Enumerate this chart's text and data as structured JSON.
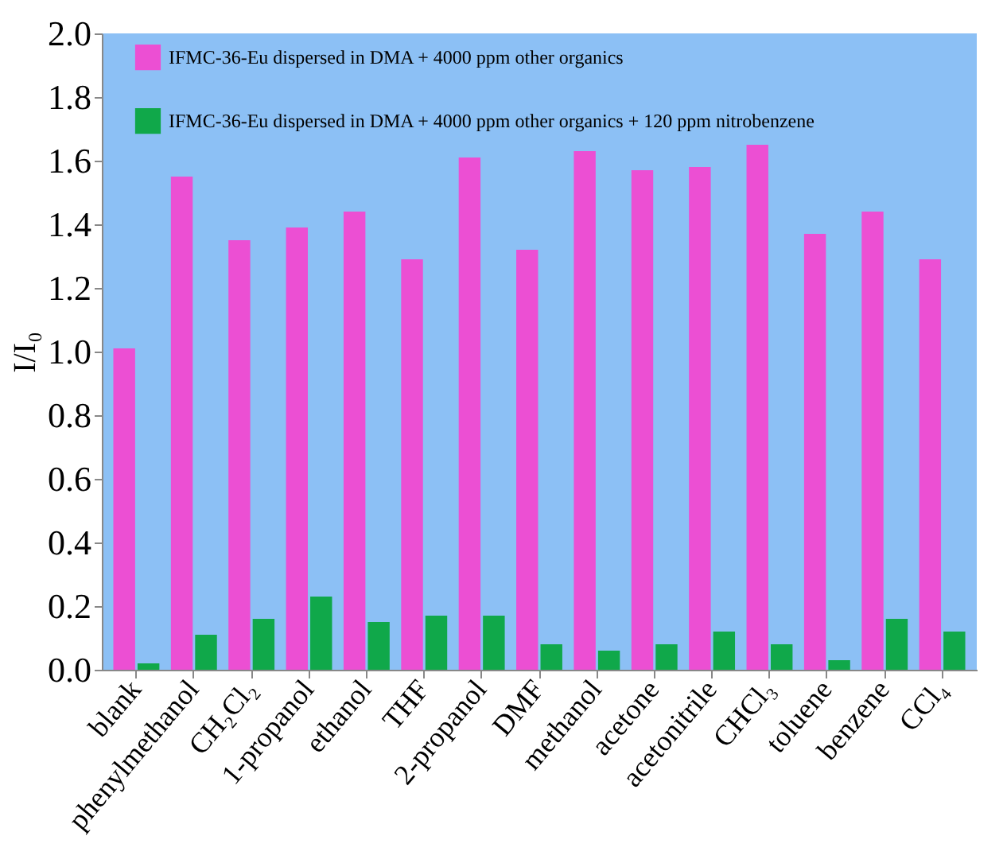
{
  "chart_data": {
    "type": "bar",
    "ylabel": "I/I₀",
    "categories": [
      "blank",
      "phenylmethanol",
      "CH₂Cl₂",
      "1-propanol",
      "ethanol",
      "THF",
      "2-propanol",
      "DMF",
      "methanol",
      "acetone",
      "acetonitrile",
      "CHCl₃",
      "toluene",
      "benzene",
      "CCl₄"
    ],
    "series": [
      {
        "name": "IFMC-36-Eu dispersed in DMA + 4000 ppm other organics",
        "color": "#ec4fd3",
        "values": [
          1.01,
          1.55,
          1.35,
          1.39,
          1.44,
          1.29,
          1.61,
          1.32,
          1.63,
          1.57,
          1.58,
          1.65,
          1.37,
          1.44,
          1.29
        ]
      },
      {
        "name": "IFMC-36-Eu dispersed in DMA + 4000 ppm other organics + 120 ppm nitrobenzene",
        "color": "#10a84a",
        "values": [
          0.02,
          0.11,
          0.16,
          0.23,
          0.15,
          0.17,
          0.17,
          0.08,
          0.06,
          0.08,
          0.12,
          0.08,
          0.03,
          0.16,
          0.12
        ]
      }
    ],
    "ylim": [
      0,
      2.0
    ],
    "yticks": [
      {
        "value": 0,
        "label": "0.0"
      },
      {
        "value": 0.2,
        "label": "0.2"
      },
      {
        "value": 0.4,
        "label": "0.4"
      },
      {
        "value": 0.6,
        "label": "0.6"
      },
      {
        "value": 0.8,
        "label": "0.8"
      },
      {
        "value": 1.0,
        "label": "1.0"
      },
      {
        "value": 1.2,
        "label": "1.2"
      },
      {
        "value": 1.4,
        "label": "1.4"
      },
      {
        "value": 1.6,
        "label": "1.6"
      },
      {
        "value": 1.8,
        "label": "1.8"
      },
      {
        "value": 2.0,
        "label": "2.0"
      }
    ],
    "grid": false,
    "legend": "top left"
  }
}
